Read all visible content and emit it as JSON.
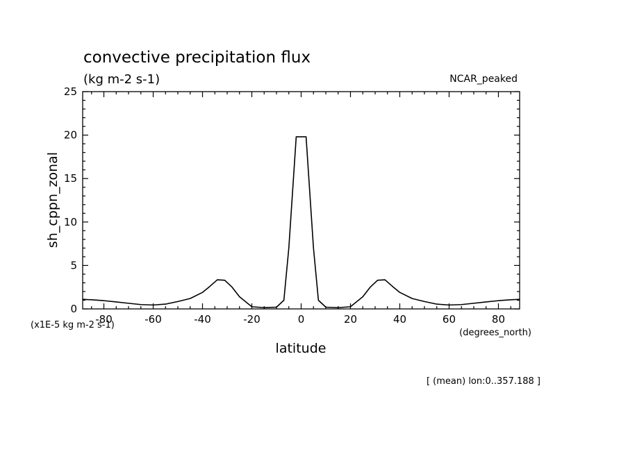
{
  "chart_data": {
    "type": "line",
    "title": "convective precipitation flux",
    "units": "(kg m-2 s-1)",
    "model_label": "NCAR_peaked",
    "ylabel": "sh_cppn_zonal",
    "xlabel": "latitude",
    "scale_label": "(x1E-5 kg m-2 s-1)",
    "x_units_label": "(degrees_north)",
    "footer": "[ (mean) lon:0..357.188 ]",
    "xlim": [
      -88.6,
      88.6
    ],
    "ylim": [
      0,
      25
    ],
    "x_ticks": [
      "-80",
      "-60",
      "-40",
      "-20",
      "0",
      "20",
      "40",
      "60",
      "80"
    ],
    "y_ticks": [
      "0",
      "5",
      "10",
      "15",
      "20",
      "25"
    ],
    "grid": false,
    "line_color": "#000000",
    "series": [
      {
        "x": [
          -88.6,
          -85,
          -80,
          -75,
          -70,
          -65,
          -60,
          -55,
          -50,
          -45,
          -40,
          -37,
          -34,
          -31,
          -28,
          -25,
          -20,
          -15,
          -10,
          -7,
          -5,
          -2,
          0,
          2,
          5,
          7,
          10,
          15,
          20,
          25,
          28,
          31,
          34,
          37,
          40,
          45,
          50,
          55,
          60,
          65,
          70,
          75,
          80,
          85,
          88.6
        ],
        "y": [
          1.1,
          1.05,
          0.95,
          0.8,
          0.65,
          0.5,
          0.45,
          0.55,
          0.85,
          1.2,
          1.9,
          2.6,
          3.35,
          3.3,
          2.5,
          1.4,
          0.25,
          0.15,
          0.2,
          1.0,
          7.0,
          19.8,
          19.8,
          19.8,
          7.0,
          1.0,
          0.2,
          0.15,
          0.25,
          1.4,
          2.5,
          3.3,
          3.35,
          2.6,
          1.9,
          1.2,
          0.85,
          0.55,
          0.45,
          0.5,
          0.65,
          0.8,
          0.95,
          1.05,
          1.1
        ]
      }
    ]
  }
}
